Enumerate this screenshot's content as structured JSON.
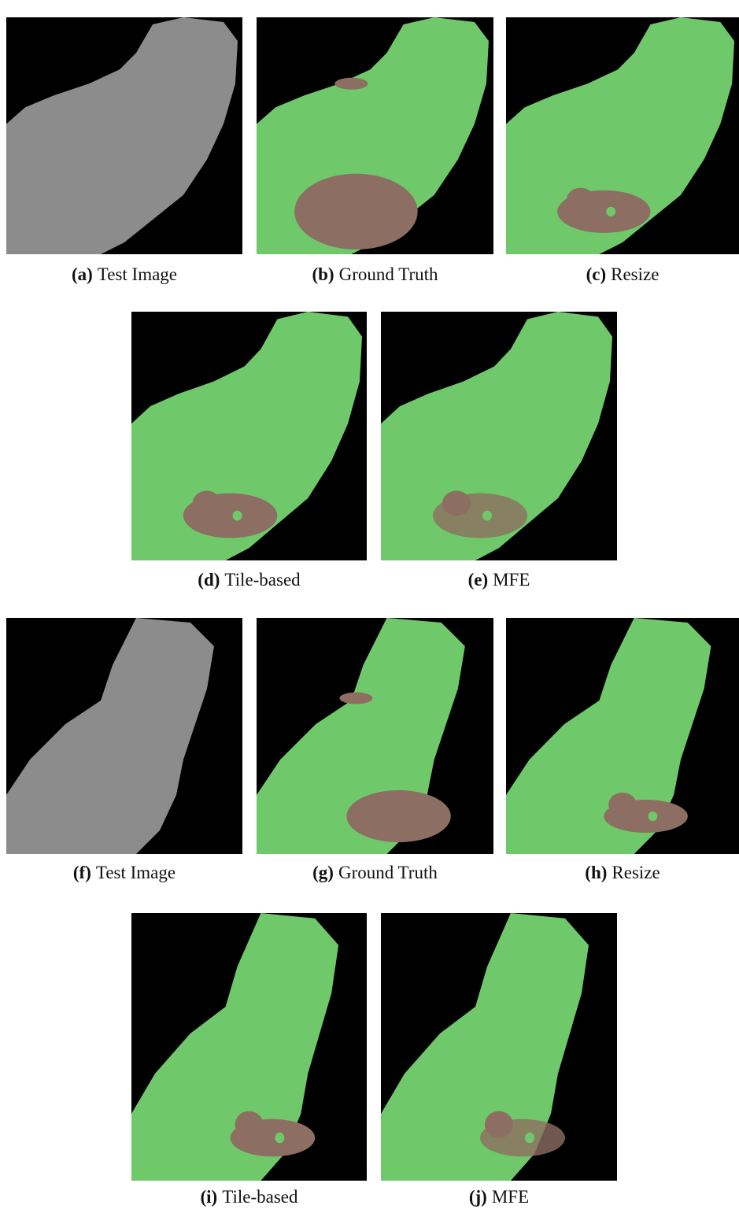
{
  "figures": [
    {
      "label": "(a)",
      "caption": "Test Image"
    },
    {
      "label": "(b)",
      "caption": "Ground Truth"
    },
    {
      "label": "(c)",
      "caption": "Resize"
    },
    {
      "label": "(d)",
      "caption": "Tile-based"
    },
    {
      "label": "(e)",
      "caption": "MFE"
    },
    {
      "label": "(f)",
      "caption": "Test Image"
    },
    {
      "label": "(g)",
      "caption": "Ground Truth"
    },
    {
      "label": "(h)",
      "caption": "Resize"
    },
    {
      "label": "(i)",
      "caption": "Tile-based"
    },
    {
      "label": "(j)",
      "caption": "MFE"
    }
  ]
}
